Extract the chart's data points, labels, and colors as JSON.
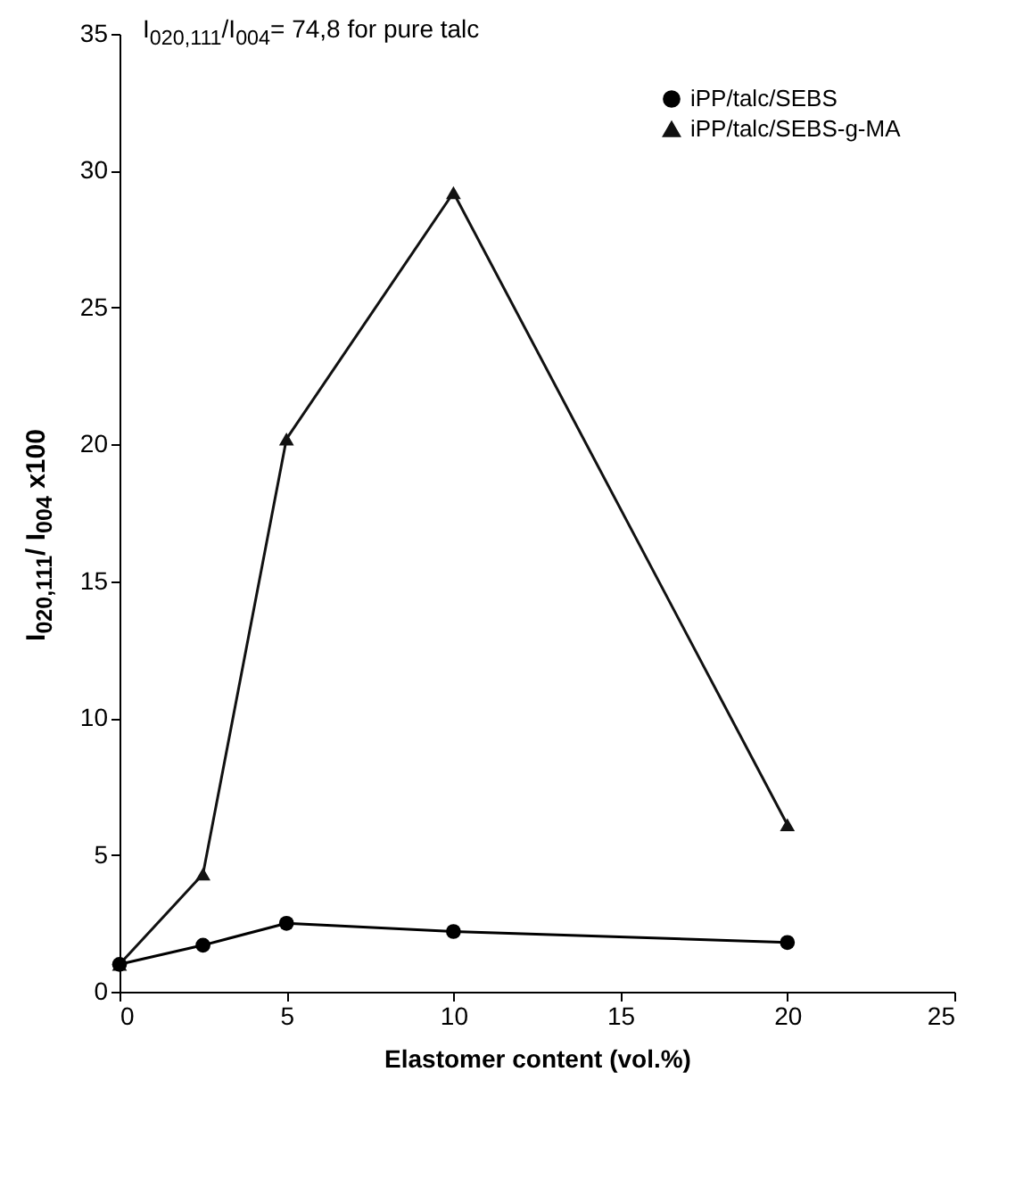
{
  "chart_data": {
    "type": "line",
    "xlabel": "Elastomer content (vol.%)",
    "ylabel": "I$_{020,111}$/ I$_{004}$ x100",
    "annotations": [
      "I$_{020,111}$/I$_{004}$= 74,8 for pure talc"
    ],
    "x": [
      0,
      2.5,
      5,
      10,
      20
    ],
    "series": [
      {
        "name": "iPP/talc/SEBS",
        "color": "#000000",
        "marker": "circle",
        "values": [
          1.0,
          1.7,
          2.5,
          2.2,
          1.8
        ]
      },
      {
        "name": "iPP/talc/SEBS-g-MA",
        "color": "#111111",
        "marker": "triangle",
        "values": [
          1.0,
          4.3,
          20.2,
          29.2,
          6.1
        ]
      }
    ],
    "xlim": [
      0,
      25
    ],
    "xticks": [
      0,
      5,
      10,
      15,
      20,
      25
    ],
    "ylim": [
      0,
      35
    ],
    "yticks": [
      0,
      5,
      10,
      15,
      20,
      25,
      30,
      35
    ],
    "grid": false,
    "legend": "top right"
  }
}
